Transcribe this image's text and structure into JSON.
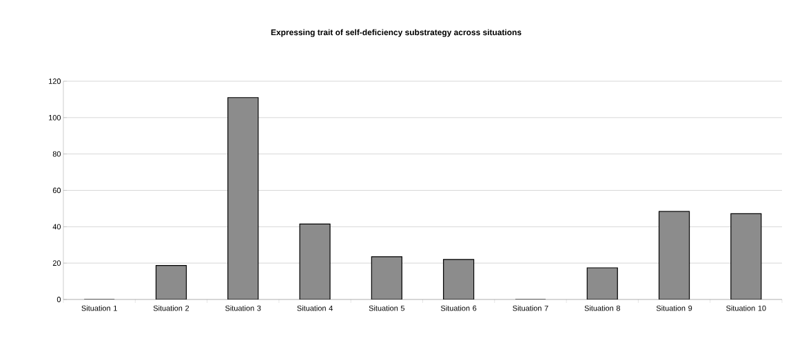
{
  "chart_data": {
    "type": "bar",
    "title": "Expressing trait of self-deficiency substrategy across situations",
    "categories": [
      "Situation 1",
      "Situation 2",
      "Situation 3",
      "Situation 4",
      "Situation 5",
      "Situation 6",
      "Situation 7",
      "Situation 8",
      "Situation 9",
      "Situation 10"
    ],
    "values": [
      0,
      18.7,
      111,
      41.5,
      23.5,
      22,
      0,
      17.4,
      48.4,
      47.2
    ],
    "color": "#8c8c8c",
    "ylim": [
      0,
      120
    ],
    "yticks": [
      0,
      20,
      40,
      60,
      80,
      100,
      120
    ],
    "grid": "y"
  }
}
